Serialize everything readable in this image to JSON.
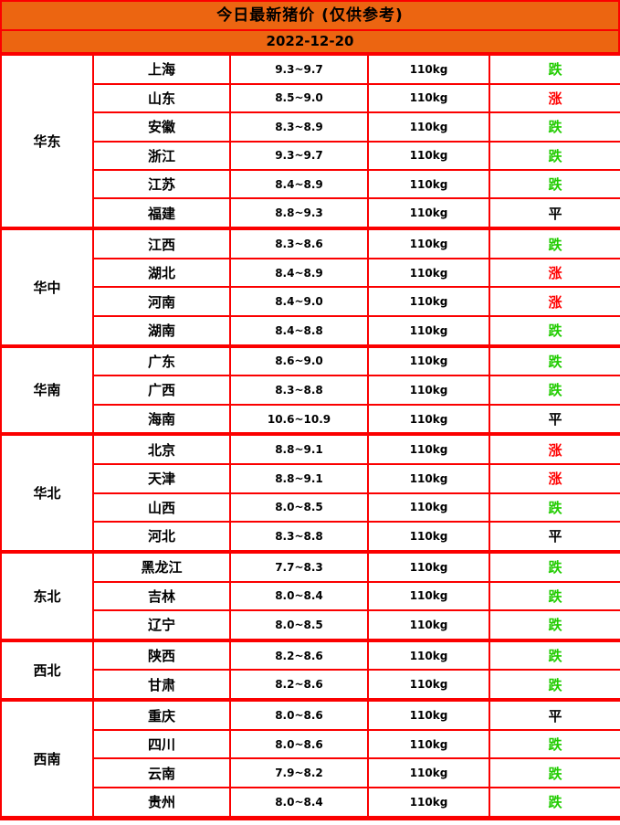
{
  "header": {
    "title": "今日最新猪价 (仅供参考)",
    "date": "2022-12-20"
  },
  "colors": {
    "orange": "#EC6511",
    "border_red": "#FB0000",
    "trend_up_red": "#FF0000",
    "trend_down_green": "#21CC00",
    "trend_flat_black": "#000000"
  },
  "table": {
    "weight_label": "110kg",
    "trend_labels": {
      "up": "涨",
      "down": "跌",
      "flat": "平"
    },
    "regions": [
      {
        "name": "华东",
        "rows": [
          {
            "province": "上海",
            "price": "9.3~9.7",
            "weight": "110kg",
            "trend": "跌",
            "direction": "down"
          },
          {
            "province": "山东",
            "price": "8.5~9.0",
            "weight": "110kg",
            "trend": "涨",
            "direction": "up"
          },
          {
            "province": "安徽",
            "price": "8.3~8.9",
            "weight": "110kg",
            "trend": "跌",
            "direction": "down"
          },
          {
            "province": "浙江",
            "price": "9.3~9.7",
            "weight": "110kg",
            "trend": "跌",
            "direction": "down"
          },
          {
            "province": "江苏",
            "price": "8.4~8.9",
            "weight": "110kg",
            "trend": "跌",
            "direction": "down"
          },
          {
            "province": "福建",
            "price": "8.8~9.3",
            "weight": "110kg",
            "trend": "平",
            "direction": "flat"
          }
        ]
      },
      {
        "name": "华中",
        "rows": [
          {
            "province": "江西",
            "price": "8.3~8.6",
            "weight": "110kg",
            "trend": "跌",
            "direction": "down"
          },
          {
            "province": "湖北",
            "price": "8.4~8.9",
            "weight": "110kg",
            "trend": "涨",
            "direction": "up"
          },
          {
            "province": "河南",
            "price": "8.4~9.0",
            "weight": "110kg",
            "trend": "涨",
            "direction": "up"
          },
          {
            "province": "湖南",
            "price": "8.4~8.8",
            "weight": "110kg",
            "trend": "跌",
            "direction": "down"
          }
        ]
      },
      {
        "name": "华南",
        "rows": [
          {
            "province": "广东",
            "price": "8.6~9.0",
            "weight": "110kg",
            "trend": "跌",
            "direction": "down"
          },
          {
            "province": "广西",
            "price": "8.3~8.8",
            "weight": "110kg",
            "trend": "跌",
            "direction": "down"
          },
          {
            "province": "海南",
            "price": "10.6~10.9",
            "weight": "110kg",
            "trend": "平",
            "direction": "flat"
          }
        ]
      },
      {
        "name": "华北",
        "rows": [
          {
            "province": "北京",
            "price": "8.8~9.1",
            "weight": "110kg",
            "trend": "涨",
            "direction": "up"
          },
          {
            "province": "天津",
            "price": "8.8~9.1",
            "weight": "110kg",
            "trend": "涨",
            "direction": "up"
          },
          {
            "province": "山西",
            "price": "8.0~8.5",
            "weight": "110kg",
            "trend": "跌",
            "direction": "down"
          },
          {
            "province": "河北",
            "price": "8.3~8.8",
            "weight": "110kg",
            "trend": "平",
            "direction": "flat"
          }
        ]
      },
      {
        "name": "东北",
        "rows": [
          {
            "province": "黑龙江",
            "price": "7.7~8.3",
            "weight": "110kg",
            "trend": "跌",
            "direction": "down"
          },
          {
            "province": "吉林",
            "price": "8.0~8.4",
            "weight": "110kg",
            "trend": "跌",
            "direction": "down"
          },
          {
            "province": "辽宁",
            "price": "8.0~8.5",
            "weight": "110kg",
            "trend": "跌",
            "direction": "down"
          }
        ]
      },
      {
        "name": "西北",
        "rows": [
          {
            "province": "陕西",
            "price": "8.2~8.6",
            "weight": "110kg",
            "trend": "跌",
            "direction": "down"
          },
          {
            "province": "甘肃",
            "price": "8.2~8.6",
            "weight": "110kg",
            "trend": "跌",
            "direction": "down"
          }
        ]
      },
      {
        "name": "西南",
        "rows": [
          {
            "province": "重庆",
            "price": "8.0~8.6",
            "weight": "110kg",
            "trend": "平",
            "direction": "flat"
          },
          {
            "province": "四川",
            "price": "8.0~8.6",
            "weight": "110kg",
            "trend": "跌",
            "direction": "down"
          },
          {
            "province": "云南",
            "price": "7.9~8.2",
            "weight": "110kg",
            "trend": "跌",
            "direction": "down"
          },
          {
            "province": "贵州",
            "price": "8.0~8.4",
            "weight": "110kg",
            "trend": "跌",
            "direction": "down"
          }
        ]
      }
    ]
  }
}
